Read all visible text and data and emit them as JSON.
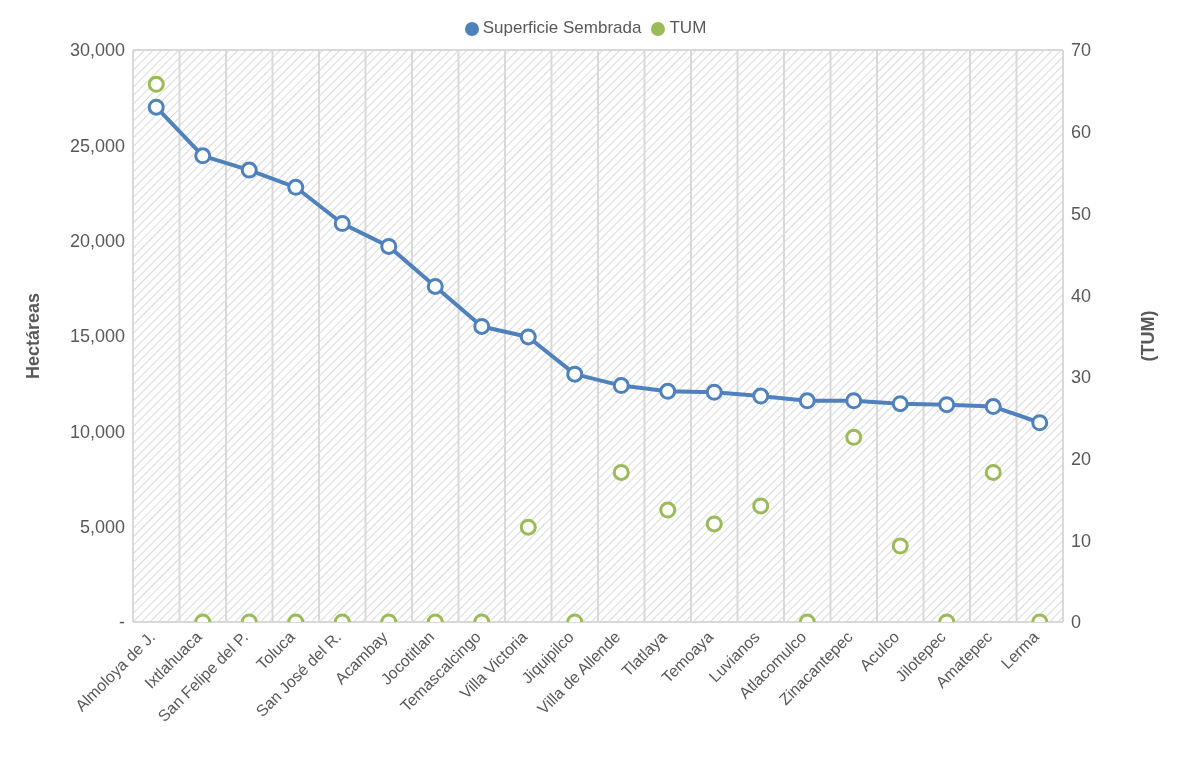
{
  "chart_data": {
    "type": "line",
    "categories": [
      "Almoloya de J.",
      "Ixtlahuaca",
      "San Felipe del P.",
      "Toluca",
      "San José del R.",
      "Acambay",
      "Jocotitlan",
      "Temascalcingo",
      "Villa Victoria",
      "Jiquipilco",
      "Villa de Allende",
      "Tlatlaya",
      "Temoaya",
      "Luvianos",
      "Atlacomulco",
      "Zinacantepec",
      "Aculco",
      "Jilotepec",
      "Amatepec",
      "Lerma"
    ],
    "series": [
      {
        "name": "Superficie Sembrada",
        "color": "#4f81bd",
        "marker": "circle",
        "values": [
          27000,
          24450,
          23700,
          22800,
          20900,
          19700,
          17600,
          15500,
          14950,
          13000,
          12400,
          12100,
          12050,
          11850,
          11600,
          11600,
          11450,
          11400,
          11300,
          10450
        ]
      },
      {
        "name": "TUM",
        "type": "scatter",
        "axis": "y2",
        "color": "#9bbb59",
        "marker": "circle",
        "values": [
          65.8,
          0,
          0,
          0,
          0,
          0,
          0,
          0,
          11.6,
          0,
          18.3,
          13.7,
          12.0,
          14.2,
          0,
          22.6,
          9.3,
          0,
          18.3,
          0
        ]
      }
    ],
    "ylabel": "Hectáreas",
    "y2label": "(TUM)",
    "ylim": [
      0,
      30000
    ],
    "yticks": [
      {
        "value": 0,
        "label": "-"
      },
      {
        "value": 5000,
        "label": "5,000"
      },
      {
        "value": 10000,
        "label": "10,000"
      },
      {
        "value": 15000,
        "label": "15,000"
      },
      {
        "value": 20000,
        "label": "20,000"
      },
      {
        "value": 25000,
        "label": "25,000"
      },
      {
        "value": 30000,
        "label": "30,000"
      }
    ],
    "y2lim": [
      0,
      70
    ],
    "y2ticks": [
      0,
      10,
      20,
      30,
      40,
      50,
      60,
      70
    ],
    "grid": true,
    "legend": "top"
  }
}
